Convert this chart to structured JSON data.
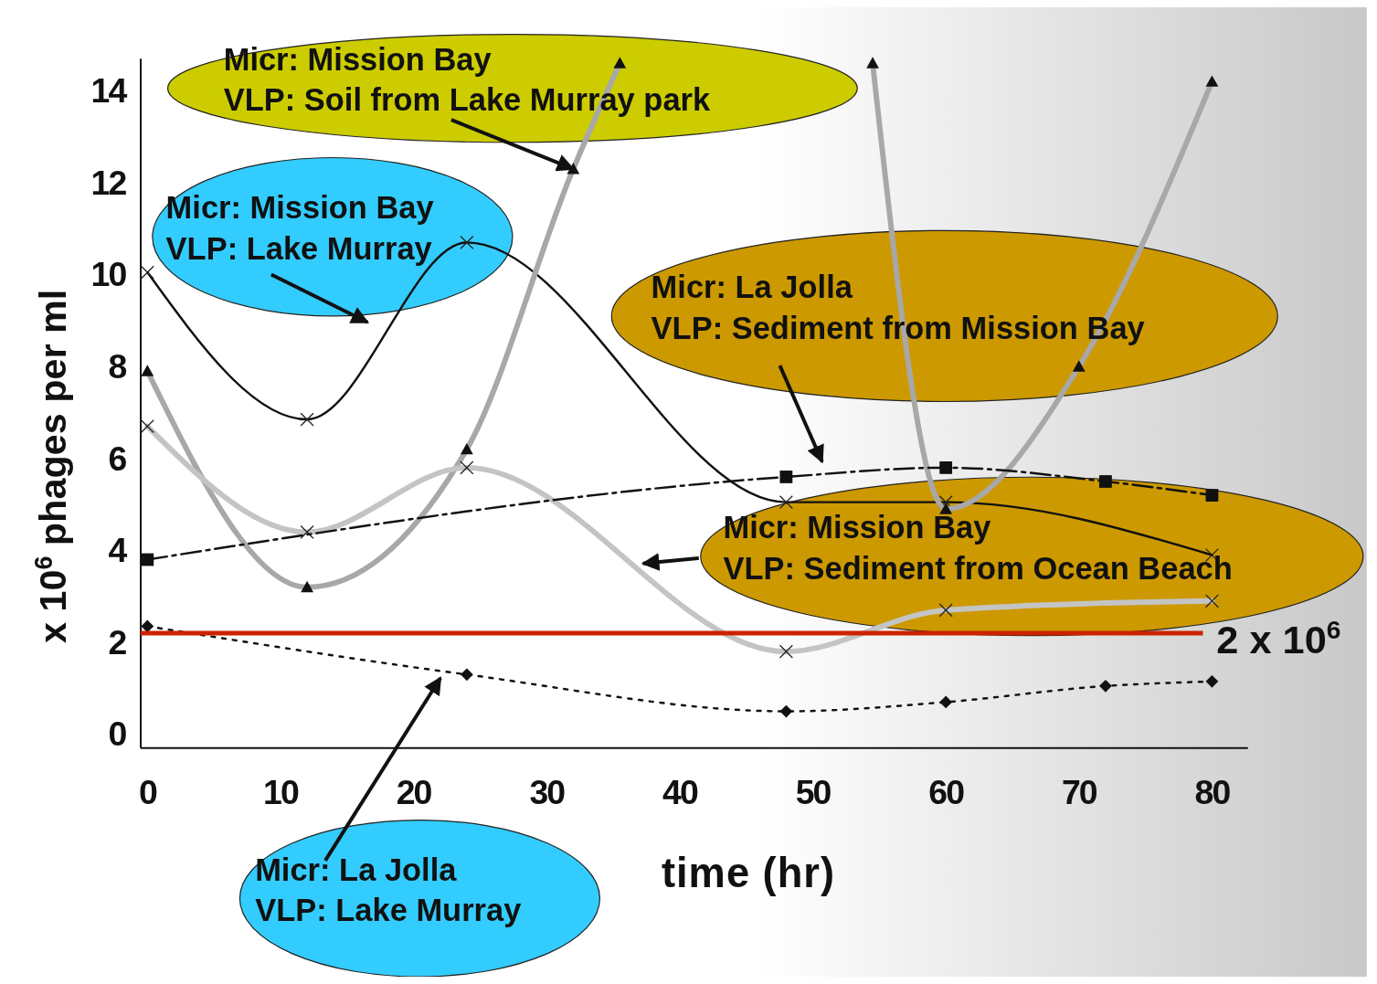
{
  "chart_data": {
    "type": "line",
    "xlabel": "time (hr)",
    "ylabel": "x 10$^{6}$ phages per ml",
    "xlim": [
      -0.5,
      82.7
    ],
    "ylim": [
      -0.3,
      14.7
    ],
    "xticks": [
      0,
      10,
      20,
      30,
      40,
      50,
      60,
      70,
      80
    ],
    "yticks": [
      0,
      2,
      4,
      6,
      8,
      10,
      12,
      14
    ],
    "grid": false,
    "series": [
      {
        "color": "#111111",
        "line_style": "solid",
        "marker": "cross",
        "x": [
          0,
          12,
          24,
          48,
          60,
          80
        ],
        "values": [
          10.05,
          6.85,
          10.7,
          5.05,
          5.05,
          3.9
        ]
      },
      {
        "color": "#a8a8a8",
        "line_style": "solid",
        "marker": "triangle",
        "x": [
          0,
          12,
          24,
          32,
          35.5,
          45,
          54.5,
          60,
          70,
          80
        ],
        "values": [
          7.9,
          3.2,
          6.2,
          12.3,
          14.6,
          null,
          14.6,
          4.9,
          8,
          14.2
        ]
      },
      {
        "color": "#c4c4c4",
        "line_style": "solid",
        "marker": "cross",
        "x": [
          0,
          12,
          24,
          48,
          60,
          80
        ],
        "values": [
          6.7,
          4.4,
          5.8,
          1.8,
          2.7,
          2.9
        ]
      },
      {
        "color": "#111111",
        "line_style": "dashed",
        "marker": "square",
        "x": [
          0,
          48,
          60,
          72,
          80
        ],
        "values": [
          3.8,
          5.6,
          5.8,
          5.5,
          5.2
        ]
      },
      {
        "color": "#111111",
        "line_style": "dotted",
        "marker": "diamond",
        "x": [
          0,
          24,
          48,
          60,
          72,
          80
        ],
        "values": [
          2.35,
          1.3,
          0.5,
          0.7,
          1.05,
          1.15
        ]
      }
    ],
    "ref_lines": [
      {
        "axis": "y",
        "value": 2.2,
        "label": "2 x 10$^{6}$",
        "color": "#cc2200"
      }
    ],
    "annotations": [
      {
        "text": "Micr: Mission Bay\nVLP: Soil from Lake Murray park",
        "x": 32,
        "y": 12.3
      },
      "Micr: Mission Bay\nVLP: Lake Murray",
      "Micr: La Jolla\nVLP: Sediment from Mission Bay",
      "Micr: Mission Bay\nVLP: Sediment from Ocean Beach",
      "Micr: La Jolla\nVLP: Lake Murray"
    ]
  }
}
